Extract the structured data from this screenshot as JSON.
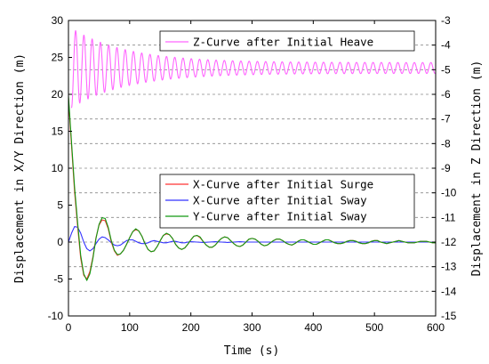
{
  "chart_data": {
    "type": "line",
    "xlabel": "Time (s)",
    "ylabel_left": "Displacement in X/Y Direction (m)",
    "ylabel_right": "Displacement in Z Direction (m)",
    "xlim": [
      0,
      600
    ],
    "ylim_left": [
      -10,
      30
    ],
    "ylim_right": [
      -15,
      -3
    ],
    "x_ticks": [
      0,
      100,
      200,
      300,
      400,
      500,
      600
    ],
    "y_left_ticks": [
      -10,
      -5,
      0,
      5,
      10,
      15,
      20,
      25,
      30
    ],
    "y_right_ticks": [
      -15,
      -14,
      -13,
      -12,
      -11,
      -10,
      -9,
      -8,
      -7,
      -6,
      -5,
      -4,
      -3
    ],
    "grid": "horizontal dashed at right-axis ticks",
    "legends": [
      {
        "placement": "top-right",
        "series": [
          "Z-Curve after Initial Heave"
        ]
      },
      {
        "placement": "center-right",
        "series": [
          "X-Curve after Initial Surge",
          "X-Curve after Initial Sway",
          "Y-Curve after Initial Sway"
        ]
      }
    ],
    "series": [
      {
        "name": "Z-Curve after Initial Heave",
        "axis": "right",
        "color": "#ff66ff",
        "model": "damped_oscillation",
        "x_start": 5,
        "baseline": -4.93,
        "amplitude": 1.4,
        "decay_time": 90,
        "residual_amplitude": 0.22,
        "period": 13.5
      },
      {
        "name": "X-Curve after Initial Surge",
        "axis": "left",
        "color": "#ff3333",
        "x": [
          0,
          3,
          6,
          10,
          15,
          20,
          25,
          30,
          35,
          40,
          45,
          50,
          55,
          60,
          65,
          70,
          75,
          80,
          85,
          90,
          95,
          100,
          105,
          110,
          115,
          120,
          125,
          130,
          135,
          140,
          145,
          150,
          155,
          160,
          165,
          170,
          175,
          180,
          185,
          190,
          195,
          200,
          205,
          210,
          215,
          220,
          225,
          230,
          235,
          240,
          245,
          250,
          255,
          260,
          265,
          270,
          275,
          280,
          285,
          290,
          295,
          300,
          305,
          310,
          315,
          320,
          325,
          330,
          335,
          340,
          345,
          350,
          355,
          360,
          365,
          370,
          375,
          380,
          385,
          390,
          395,
          400,
          405,
          410,
          415,
          420,
          425,
          430,
          435,
          440,
          445,
          450,
          455,
          460,
          465,
          470,
          475,
          480,
          485,
          490,
          495,
          500,
          505,
          510,
          515,
          520,
          525,
          530,
          535,
          540,
          545,
          550,
          555,
          560,
          565,
          570,
          575,
          580,
          585,
          590,
          595,
          600
        ],
        "values": [
          19.5,
          15.5,
          11.8,
          6.8,
          2.1,
          -2.2,
          -4.5,
          -5.0,
          -4.0,
          -2.0,
          0.6,
          2.3,
          3.0,
          2.9,
          1.8,
          0.0,
          -1.2,
          -1.8,
          -1.6,
          -1.1,
          -0.3,
          0.6,
          1.4,
          1.7,
          1.5,
          0.8,
          -0.2,
          -1.0,
          -1.3,
          -1.2,
          -0.6,
          0.2,
          0.9,
          1.1,
          1.0,
          0.5,
          -0.3,
          -0.8,
          -1.0,
          -0.8,
          -0.3,
          0.3,
          0.8,
          0.9,
          0.6,
          0.1,
          -0.4,
          -0.7,
          -0.7,
          -0.4,
          0.1,
          0.5,
          0.7,
          0.6,
          0.2,
          -0.2,
          -0.5,
          -0.6,
          -0.4,
          0.0,
          0.4,
          0.5,
          0.4,
          0.1,
          -0.3,
          -0.5,
          -0.4,
          -0.1,
          0.2,
          0.4,
          0.4,
          0.2,
          -0.1,
          -0.3,
          -0.4,
          -0.2,
          0.1,
          0.3,
          0.3,
          0.1,
          -0.1,
          -0.3,
          -0.3,
          -0.1,
          0.1,
          0.3,
          0.3,
          0.1,
          -0.1,
          -0.2,
          -0.2,
          -0.1,
          0.1,
          0.2,
          0.2,
          0.1,
          -0.1,
          -0.2,
          -0.2,
          -0.1,
          0.1,
          0.2,
          0.2,
          0.0,
          -0.1,
          -0.2,
          -0.1,
          0.0,
          0.1,
          0.2,
          0.1,
          0.0,
          -0.1,
          -0.1,
          -0.1,
          0.0,
          0.1,
          0.1,
          0.1,
          0.0,
          -0.1,
          -0.1
        ]
      },
      {
        "name": "X-Curve after Initial Sway",
        "axis": "left",
        "color": "#3333ff",
        "x": [
          0,
          5,
          10,
          15,
          20,
          25,
          30,
          35,
          40,
          45,
          50,
          55,
          60,
          65,
          70,
          75,
          80,
          85,
          90,
          95,
          100,
          105,
          110,
          115,
          120,
          125,
          130,
          135,
          140,
          145,
          150,
          155,
          160,
          165,
          170,
          175,
          180,
          185,
          190,
          195,
          200,
          210,
          220,
          230,
          240,
          250,
          260,
          270,
          280,
          290,
          300,
          320,
          340,
          360,
          380,
          400,
          420,
          440,
          460,
          480,
          500,
          520,
          540,
          560,
          580,
          600
        ],
        "values": [
          0.0,
          1.2,
          2.1,
          2.0,
          1.2,
          0.0,
          -0.9,
          -1.2,
          -0.9,
          -0.2,
          0.4,
          0.7,
          0.6,
          0.3,
          -0.1,
          -0.4,
          -0.5,
          -0.4,
          -0.1,
          0.2,
          0.3,
          0.3,
          0.1,
          -0.1,
          -0.2,
          -0.2,
          -0.1,
          0.1,
          0.2,
          0.1,
          0.0,
          -0.1,
          -0.1,
          0.0,
          0.1,
          0.1,
          0.0,
          -0.1,
          -0.1,
          0.0,
          0.05,
          0.0,
          -0.05,
          0.0,
          0.05,
          0.0,
          -0.05,
          0.0,
          0.05,
          0.0,
          0.0,
          0.0,
          0.0,
          0.0,
          0.0,
          0.0,
          0.0,
          0.0,
          0.0,
          0.0,
          0.0,
          0.0,
          0.0,
          0.0,
          0.0,
          0.0
        ]
      },
      {
        "name": "Y-Curve after Initial Sway",
        "axis": "left",
        "color": "#119911",
        "x": [
          0,
          3,
          6,
          10,
          15,
          20,
          25,
          30,
          35,
          40,
          45,
          50,
          55,
          60,
          65,
          70,
          75,
          80,
          85,
          90,
          95,
          100,
          105,
          110,
          115,
          120,
          125,
          130,
          135,
          140,
          145,
          150,
          155,
          160,
          165,
          170,
          175,
          180,
          185,
          190,
          195,
          200,
          205,
          210,
          215,
          220,
          225,
          230,
          235,
          240,
          245,
          250,
          255,
          260,
          265,
          270,
          275,
          280,
          285,
          290,
          295,
          300,
          305,
          310,
          315,
          320,
          325,
          330,
          335,
          340,
          345,
          350,
          355,
          360,
          365,
          370,
          375,
          380,
          385,
          390,
          395,
          400,
          405,
          410,
          415,
          420,
          425,
          430,
          435,
          440,
          445,
          450,
          455,
          460,
          465,
          470,
          475,
          480,
          485,
          490,
          495,
          500,
          505,
          510,
          515,
          520,
          525,
          530,
          535,
          540,
          545,
          550,
          555,
          560,
          565,
          570,
          575,
          580,
          585,
          590,
          595,
          600
        ],
        "values": [
          19.8,
          16.0,
          12.3,
          7.4,
          2.6,
          -1.8,
          -4.3,
          -5.2,
          -4.3,
          -2.2,
          0.5,
          2.4,
          3.3,
          3.2,
          2.0,
          0.2,
          -1.1,
          -1.7,
          -1.6,
          -1.1,
          -0.3,
          0.6,
          1.4,
          1.8,
          1.5,
          0.8,
          -0.2,
          -1.0,
          -1.3,
          -1.2,
          -0.6,
          0.2,
          0.9,
          1.2,
          1.0,
          0.5,
          -0.3,
          -0.8,
          -1.0,
          -0.8,
          -0.3,
          0.3,
          0.8,
          0.9,
          0.7,
          0.1,
          -0.4,
          -0.7,
          -0.7,
          -0.4,
          0.1,
          0.5,
          0.7,
          0.6,
          0.2,
          -0.2,
          -0.5,
          -0.6,
          -0.4,
          0.0,
          0.4,
          0.5,
          0.4,
          0.1,
          -0.3,
          -0.5,
          -0.4,
          -0.1,
          0.2,
          0.4,
          0.4,
          0.2,
          -0.1,
          -0.3,
          -0.4,
          -0.2,
          0.1,
          0.3,
          0.3,
          0.1,
          -0.1,
          -0.3,
          -0.3,
          -0.1,
          0.1,
          0.3,
          0.3,
          0.1,
          -0.1,
          -0.2,
          -0.2,
          -0.1,
          0.1,
          0.2,
          0.2,
          0.1,
          -0.1,
          -0.2,
          -0.2,
          -0.1,
          0.1,
          0.2,
          0.2,
          0.0,
          -0.1,
          -0.2,
          -0.1,
          0.0,
          0.1,
          0.2,
          0.1,
          0.0,
          -0.1,
          -0.1,
          -0.1,
          0.0,
          0.1,
          0.1,
          0.1,
          0.0,
          -0.1,
          -0.1
        ]
      }
    ]
  }
}
